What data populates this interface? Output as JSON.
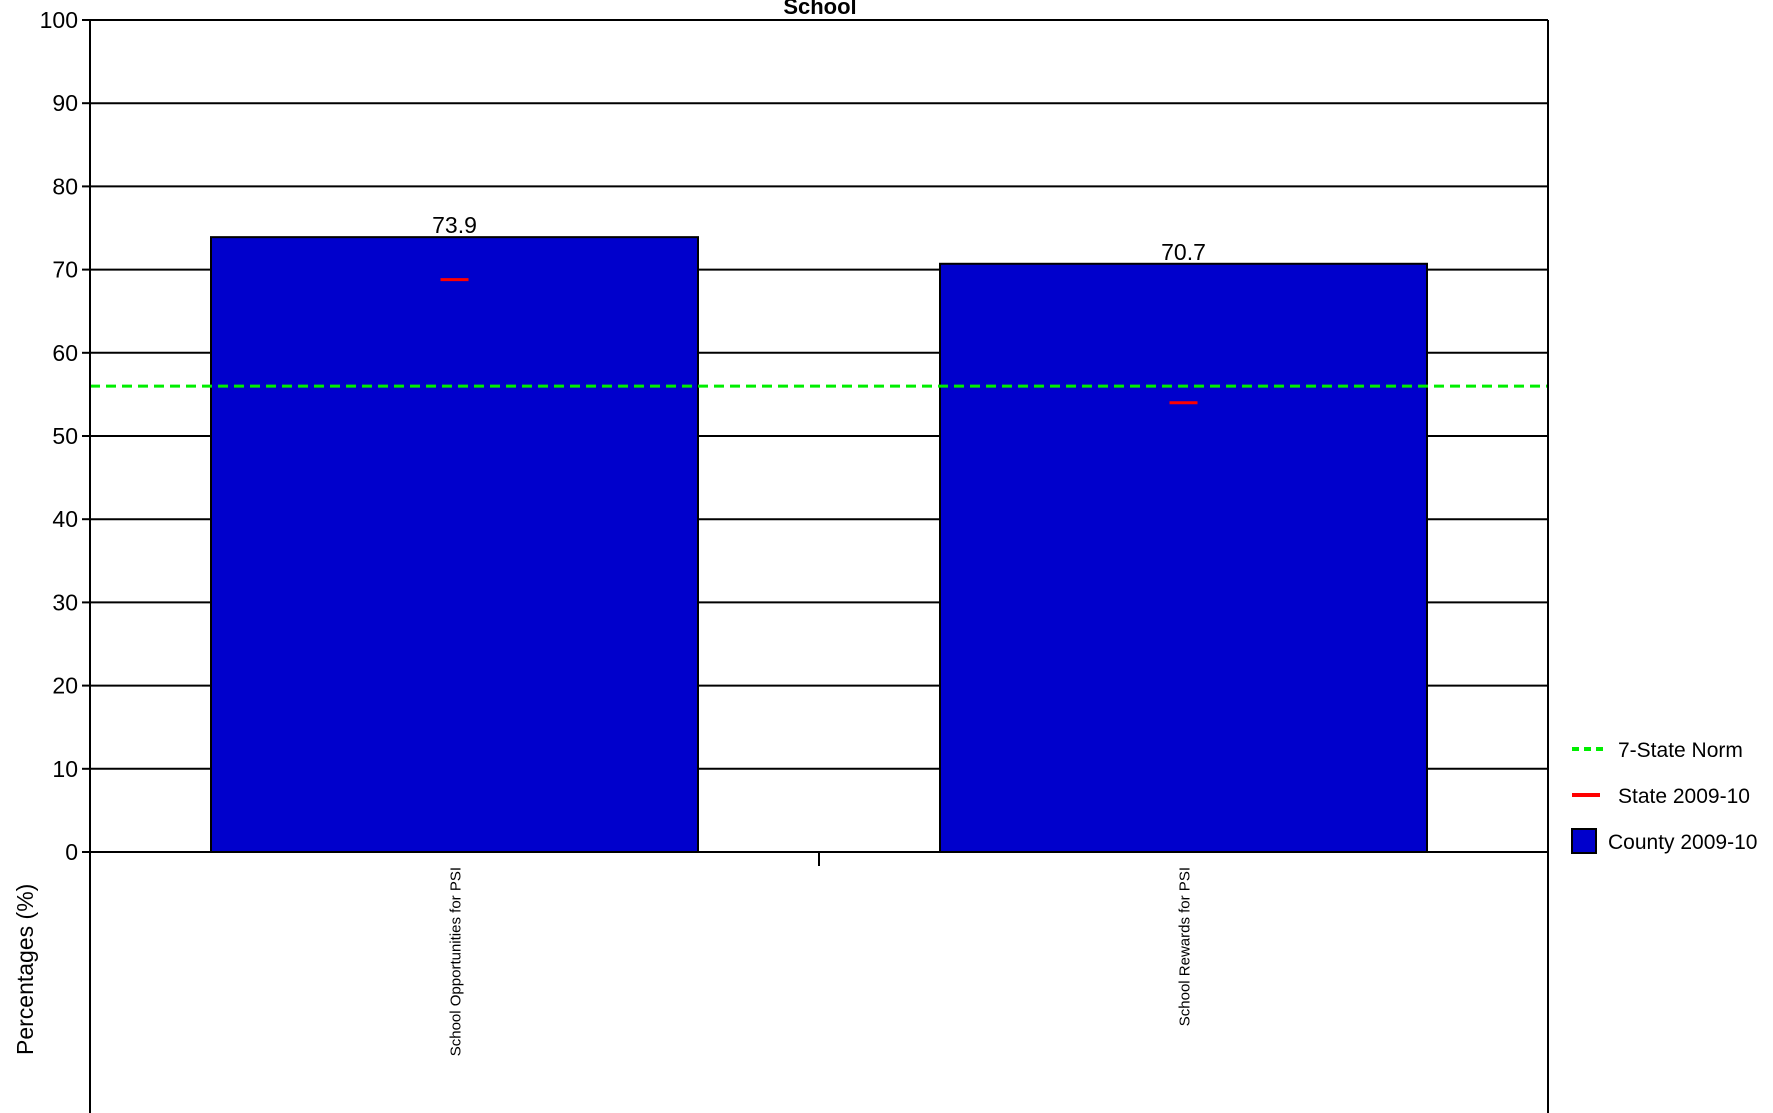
{
  "chart_data": {
    "type": "bar",
    "title": "School",
    "ylabel": "Percentages (%)",
    "xlabel": "",
    "ylim": [
      0,
      100
    ],
    "yticks": [
      0,
      10,
      20,
      30,
      40,
      50,
      60,
      70,
      80,
      90,
      100
    ],
    "grid": true,
    "legend_position": "right",
    "categories": [
      "School Opportunities for PSI",
      "School Rewards for PSI"
    ],
    "series": [
      {
        "name": "County 2009-10",
        "kind": "bar",
        "color": "#0000CC",
        "values": [
          73.9,
          70.7
        ]
      },
      {
        "name": "State 2009-10",
        "kind": "marker",
        "color": "#FF0000",
        "values": [
          68.8,
          54.0
        ]
      },
      {
        "name": "7-State Norm",
        "kind": "reference-line",
        "color": "#00EE00",
        "value": 56.0
      }
    ],
    "data_labels": [
      "73.9",
      "70.7"
    ]
  }
}
